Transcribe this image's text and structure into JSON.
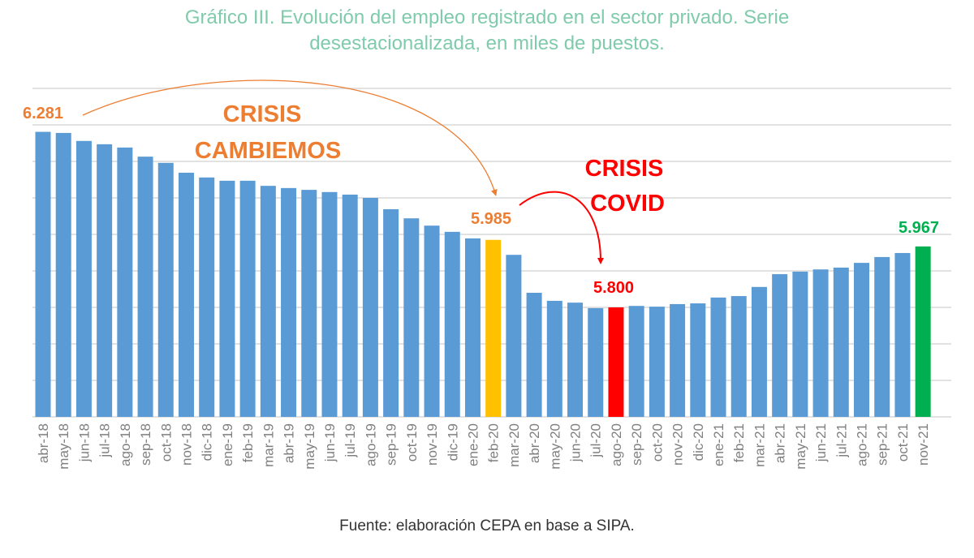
{
  "title_line1": "Gráfico III. Evolución del empleo registrado en el sector privado. Serie",
  "title_line2": "desestacionalizada, en miles de puestos.",
  "source": "Fuente: elaboración CEPA en base a SIPA.",
  "chart_data": {
    "type": "bar",
    "title": "Gráfico III. Evolución del empleo registrado en el sector privado. Serie desestacionalizada, en miles de puestos.",
    "ylim": [
      5.5,
      6.4
    ],
    "grid": true,
    "grid_step": 0.1,
    "y_tick_labels_shown": false,
    "categories": [
      "abr-18",
      "may-18",
      "jun-18",
      "jul-18",
      "ago-18",
      "sep-18",
      "oct-18",
      "nov-18",
      "dic-18",
      "ene-19",
      "feb-19",
      "mar-19",
      "abr-19",
      "may-19",
      "jun-19",
      "jul-19",
      "ago-19",
      "sep-19",
      "oct-19",
      "nov-19",
      "dic-19",
      "ene-20",
      "feb-20",
      "mar-20",
      "abr-20",
      "may-20",
      "jun-20",
      "jul-20",
      "ago-20",
      "sep-20",
      "oct-20",
      "nov-20",
      "dic-20",
      "ene-21",
      "feb-21",
      "mar-21",
      "abr-21",
      "may-21",
      "jun-21",
      "jul-21",
      "ago-21",
      "sep-21",
      "oct-21",
      "nov-21"
    ],
    "values": [
      6.281,
      6.278,
      6.256,
      6.247,
      6.238,
      6.213,
      6.196,
      6.169,
      6.156,
      6.147,
      6.147,
      6.133,
      6.127,
      6.122,
      6.116,
      6.109,
      6.1,
      6.069,
      6.044,
      6.024,
      6.007,
      5.989,
      5.985,
      5.944,
      5.84,
      5.818,
      5.813,
      5.798,
      5.8,
      5.804,
      5.802,
      5.809,
      5.811,
      5.827,
      5.831,
      5.856,
      5.891,
      5.898,
      5.904,
      5.909,
      5.922,
      5.938,
      5.949,
      5.967
    ],
    "colors": {
      "default": "#5b9bd5",
      "feb-20": "#ffc000",
      "ago-20": "#ff0000",
      "nov-21": "#00b050",
      "grid": "#d9d9d9",
      "tick_label": "#7f7f7f"
    },
    "data_labels": [
      {
        "category": "abr-18",
        "text": "6.281",
        "color": "#ed7d31"
      },
      {
        "category": "feb-20",
        "text": "5.985",
        "color": "#ed7d31"
      },
      {
        "category": "ago-20",
        "text": "5.800",
        "color": "#ff0000"
      },
      {
        "category": "nov-21",
        "text": "5.967",
        "color": "#00b050"
      }
    ],
    "annotations": [
      {
        "text_lines": [
          "CRISIS",
          "CAMBIEMOS"
        ],
        "color": "#ed7d31",
        "arrow_from": "abr-18",
        "arrow_to": "feb-20"
      },
      {
        "text_lines": [
          "CRISIS",
          "COVID"
        ],
        "color": "#ff0000",
        "arrow_from": "feb-20",
        "arrow_to": "ago-20"
      }
    ]
  }
}
